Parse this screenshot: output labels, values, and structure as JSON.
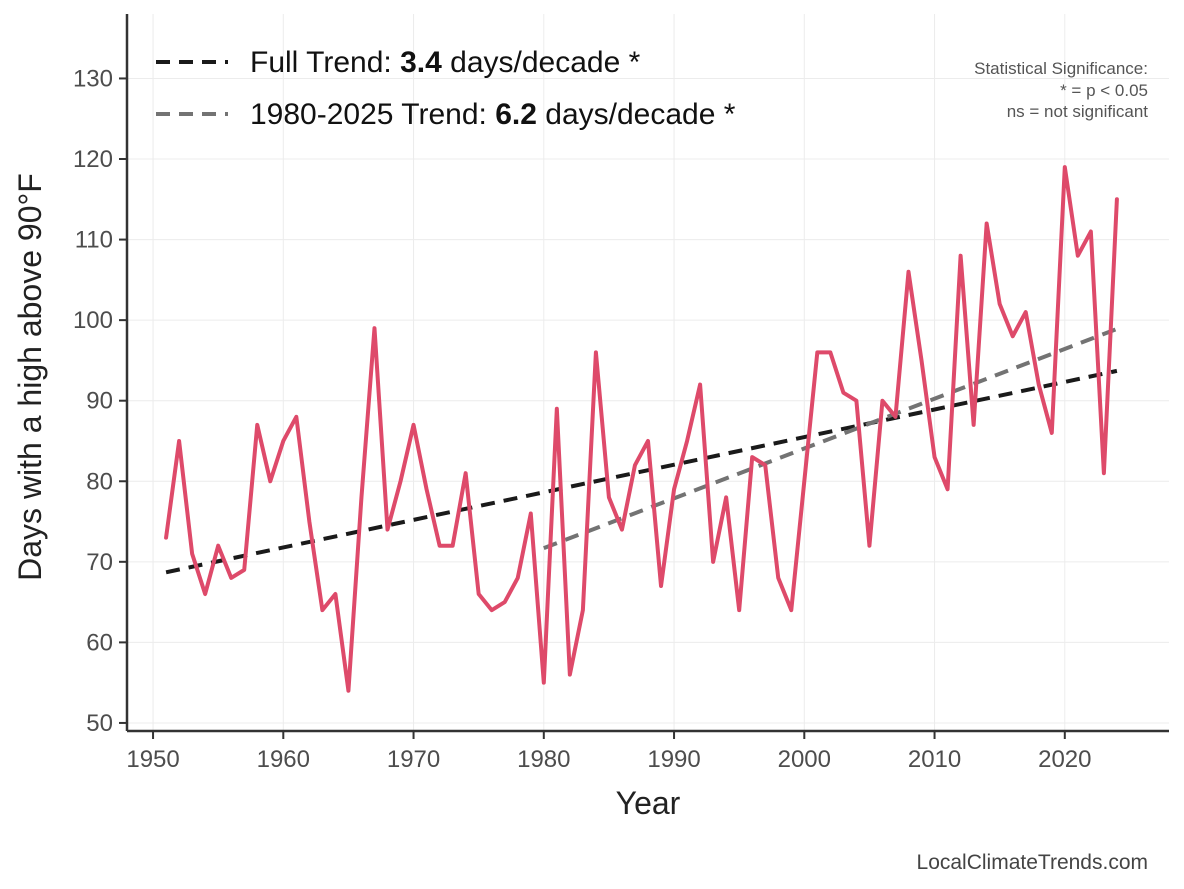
{
  "chart_data": {
    "type": "line",
    "xlabel": "Year",
    "ylabel": "Days with a high above 90°F",
    "xlim": [
      1948,
      2028
    ],
    "ylim": [
      49,
      138
    ],
    "x_ticks": [
      1950,
      1960,
      1970,
      1980,
      1990,
      2000,
      2010,
      2020
    ],
    "y_ticks": [
      50,
      60,
      70,
      80,
      90,
      100,
      110,
      120,
      130
    ],
    "grid": true,
    "series": [
      {
        "color": "#de4a6a",
        "x": [
          1951,
          1952,
          1953,
          1954,
          1955,
          1956,
          1957,
          1958,
          1959,
          1960,
          1961,
          1962,
          1963,
          1964,
          1965,
          1966,
          1967,
          1968,
          1969,
          1970,
          1971,
          1972,
          1973,
          1974,
          1975,
          1976,
          1977,
          1978,
          1979,
          1980,
          1981,
          1982,
          1983,
          1984,
          1985,
          1986,
          1987,
          1988,
          1989,
          1990,
          1991,
          1992,
          1993,
          1994,
          1995,
          1996,
          1997,
          1998,
          1999,
          2000,
          2001,
          2002,
          2003,
          2004,
          2005,
          2006,
          2007,
          2008,
          2009,
          2010,
          2011,
          2012,
          2013,
          2014,
          2015,
          2016,
          2017,
          2018,
          2019,
          2020,
          2021,
          2022,
          2023,
          2024
        ],
        "y": [
          73,
          85,
          71,
          66,
          72,
          68,
          69,
          87,
          80,
          85,
          88,
          75,
          64,
          66,
          54,
          78,
          99,
          74,
          80,
          87,
          79,
          72,
          72,
          81,
          66,
          64,
          65,
          68,
          76,
          55,
          89,
          56,
          64,
          96,
          78,
          74,
          82,
          85,
          67,
          79,
          85,
          92,
          70,
          78,
          64,
          83,
          82,
          68,
          64,
          80,
          96,
          96,
          91,
          90,
          72,
          90,
          88,
          106,
          95,
          83,
          79,
          108,
          87,
          112,
          102,
          98,
          101,
          92,
          86,
          119,
          108,
          111,
          81,
          115
        ]
      }
    ],
    "trend_lines": [
      {
        "label": "Full Trend:",
        "slope_text": "3.4",
        "unit_text": "days/decade *",
        "color": "#1a1a1a",
        "x": [
          1951,
          2024
        ],
        "y": [
          68.7,
          93.7
        ]
      },
      {
        "label": "1980-2025 Trend:",
        "slope_text": "6.2",
        "unit_text": "days/decade *",
        "color": "#737373",
        "x": [
          1980,
          2024
        ],
        "y": [
          71.7,
          98.9
        ]
      }
    ],
    "legend_position": "top-left",
    "significance_note": [
      "Statistical Significance:",
      "* = p < 0.05",
      "ns = not significant"
    ]
  },
  "credit": "LocalClimateTrends.com"
}
